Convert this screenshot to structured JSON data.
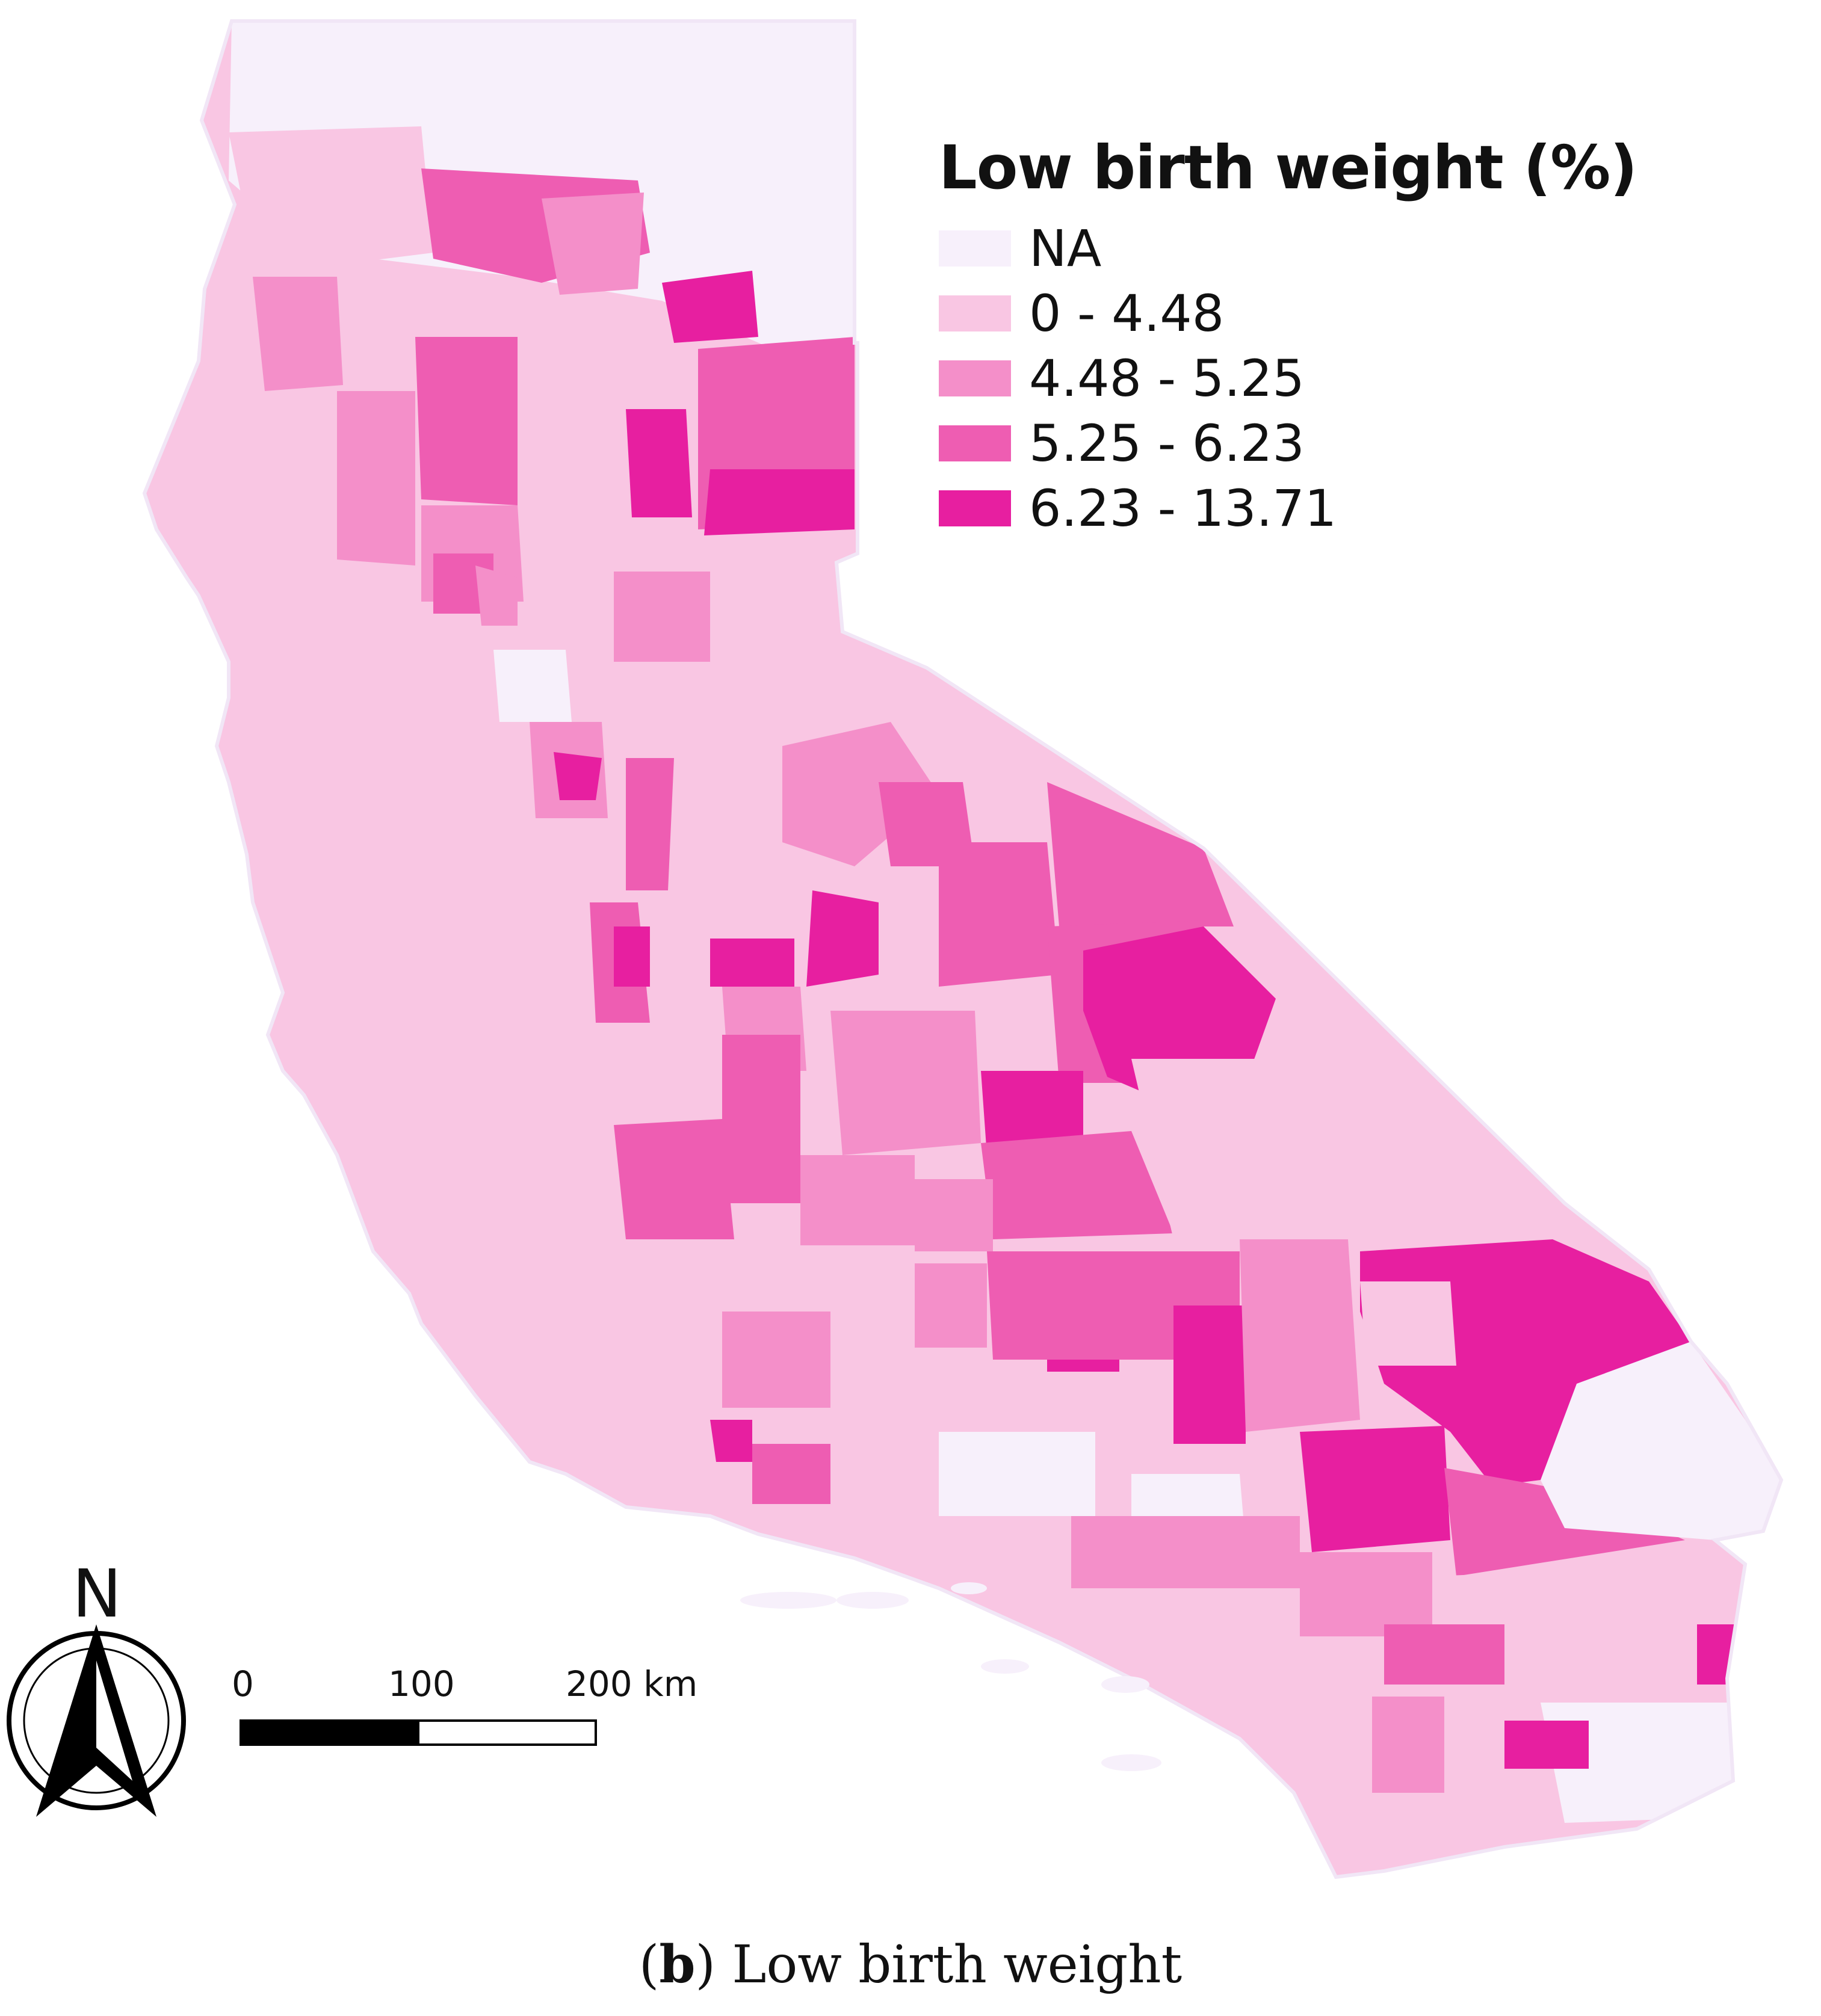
{
  "legend": {
    "title": "Low birth weight (%)",
    "classes": [
      {
        "label": "NA",
        "color": "#f7f0fb"
      },
      {
        "label": "0 - 4.48",
        "color": "#f9c6e3"
      },
      {
        "label": "4.48 - 5.25",
        "color": "#f48fc9"
      },
      {
        "label": "5.25 - 6.23",
        "color": "#ee5db2"
      },
      {
        "label": "6.23 - 13.71",
        "color": "#e71fa0"
      }
    ]
  },
  "scale_bar": {
    "labels": [
      "0",
      "100",
      "200 km"
    ],
    "segment_colors": [
      "#000000",
      "#ffffff"
    ]
  },
  "north_arrow": {
    "letter": "N",
    "icon": "north-arrow-icon"
  },
  "caption": {
    "panel_letter": "b",
    "open_paren": "(",
    "close_paren": ")",
    "text": " Low birth weight"
  }
}
